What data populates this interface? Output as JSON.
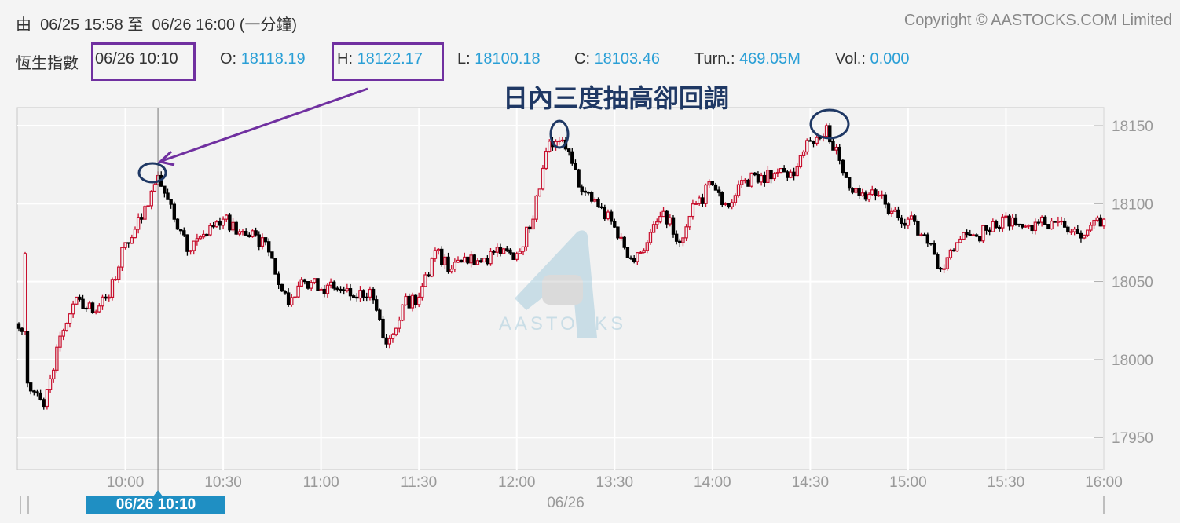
{
  "header": {
    "range_prefix": "由",
    "range_from": "06/25 15:58",
    "range_sep": "至",
    "range_to": "06/26 16:00",
    "interval": "(一分鐘)",
    "copyright": "Copyright © AASTOCKS.COM Limited"
  },
  "quote": {
    "name": "恆生指數",
    "datetime": "06/26 10:10",
    "open_label": "O:",
    "open": "18118.19",
    "high_label": "H:",
    "high": "18122.17",
    "low_label": "L:",
    "low": "18100.18",
    "close_label": "C:",
    "close": "18103.46",
    "turnover_label": "Turn.:",
    "turnover": "469.05M",
    "volume_label": "Vol.:",
    "volume": "0.000"
  },
  "annotation": {
    "text": "日內三度抽高卻回調",
    "box_color": "#7030a0",
    "circle_color": "#1f3864"
  },
  "crosshair": {
    "label": "06/26 10:10"
  },
  "watermark": "AASTOCKS",
  "colors": {
    "up": "#c8102e",
    "down": "#000000",
    "value": "#2a9fd6",
    "crosshair_label_bg": "#1f8fc3"
  },
  "chart_data": {
    "type": "candlestick",
    "interval": "1 minute",
    "date_label": "06/26",
    "ylim": [
      17930,
      18160
    ],
    "y_ticks": [
      18150,
      18100,
      18050,
      18000,
      17950
    ],
    "x_tick_labels": [
      "10:00",
      "10:30",
      "11:00",
      "11:30",
      "12:00",
      "13:30",
      "14:00",
      "14:30",
      "15:00",
      "15:30",
      "16:00"
    ],
    "grid": true,
    "previous_session_closes": [
      18020,
      18018,
      18068
    ],
    "series": {
      "times": [
        "09:30",
        "09:35",
        "09:40",
        "09:45",
        "09:50",
        "09:55",
        "10:00",
        "10:05",
        "10:10",
        "10:15",
        "10:20",
        "10:25",
        "10:30",
        "10:35",
        "10:40",
        "10:45",
        "10:50",
        "10:55",
        "11:00",
        "11:05",
        "11:10",
        "11:15",
        "11:20",
        "11:25",
        "11:30",
        "11:35",
        "11:40",
        "11:45",
        "11:50",
        "11:55",
        "12:00",
        "13:05",
        "13:10",
        "13:15",
        "13:20",
        "13:25",
        "13:30",
        "13:35",
        "13:40",
        "13:45",
        "13:50",
        "13:55",
        "14:00",
        "14:05",
        "14:10",
        "14:15",
        "14:20",
        "14:25",
        "14:30",
        "14:35",
        "14:40",
        "14:45",
        "14:50",
        "14:55",
        "15:00",
        "15:05",
        "15:10",
        "15:15",
        "15:20",
        "15:25",
        "15:30",
        "15:35",
        "15:40",
        "15:45",
        "15:50",
        "15:55",
        "16:00"
      ],
      "closes": [
        17985,
        17970,
        18015,
        18040,
        18030,
        18040,
        18075,
        18090,
        18118,
        18090,
        18070,
        18080,
        18090,
        18082,
        18080,
        18065,
        18035,
        18050,
        18045,
        18045,
        18040,
        18045,
        18010,
        18035,
        18040,
        18070,
        18058,
        18062,
        18065,
        18068,
        18068,
        18090,
        18140,
        18135,
        18108,
        18098,
        18085,
        18065,
        18075,
        18095,
        18075,
        18100,
        18112,
        18098,
        18115,
        18118,
        18120,
        18118,
        18140,
        18150,
        18120,
        18105,
        18105,
        18095,
        18090,
        18080,
        18058,
        18075,
        18080,
        18082,
        18092,
        18085,
        18088,
        18088,
        18082,
        18083,
        18090
      ]
    }
  }
}
